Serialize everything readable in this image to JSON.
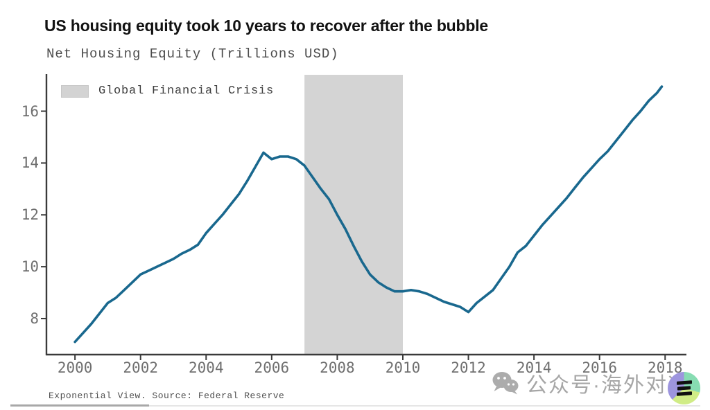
{
  "header": {
    "title": "US housing equity took 10 years to recover after the bubble",
    "subtitle": "Net Housing Equity (Trillions USD)"
  },
  "chart_data": {
    "type": "line",
    "title": "Net Housing Equity (Trillions USD)",
    "xlabel": "",
    "ylabel": "",
    "x_ticks": [
      2000,
      2002,
      2004,
      2006,
      2008,
      2010,
      2012,
      2014,
      2016,
      2018
    ],
    "y_ticks": [
      8,
      10,
      12,
      14,
      16
    ],
    "xlim": [
      1999.13,
      2018.65
    ],
    "ylim": [
      6.61,
      17.43
    ],
    "grid": false,
    "legend_position": "top-left",
    "line_color": "#19688e",
    "axis_color": "#3a3a3a",
    "tick_label_color": "#6f6f6f",
    "band": {
      "label": "Global Financial Crisis",
      "from": 2007,
      "to": 2010,
      "color": "#d4d4d4"
    },
    "series": [
      {
        "name": "Net Housing Equity (Trillions USD)",
        "points": [
          [
            2000.0,
            7.1
          ],
          [
            2000.25,
            7.45
          ],
          [
            2000.5,
            7.8
          ],
          [
            2000.75,
            8.2
          ],
          [
            2001.0,
            8.6
          ],
          [
            2001.25,
            8.8
          ],
          [
            2001.5,
            9.1
          ],
          [
            2001.75,
            9.4
          ],
          [
            2002.0,
            9.7
          ],
          [
            2002.25,
            9.85
          ],
          [
            2002.5,
            10.0
          ],
          [
            2002.75,
            10.15
          ],
          [
            2003.0,
            10.3
          ],
          [
            2003.25,
            10.5
          ],
          [
            2003.5,
            10.65
          ],
          [
            2003.75,
            10.85
          ],
          [
            2004.0,
            11.3
          ],
          [
            2004.25,
            11.65
          ],
          [
            2004.5,
            12.0
          ],
          [
            2004.75,
            12.4
          ],
          [
            2005.0,
            12.8
          ],
          [
            2005.25,
            13.3
          ],
          [
            2005.5,
            13.85
          ],
          [
            2005.75,
            14.4
          ],
          [
            2006.0,
            14.15
          ],
          [
            2006.25,
            14.25
          ],
          [
            2006.5,
            14.25
          ],
          [
            2006.75,
            14.15
          ],
          [
            2007.0,
            13.9
          ],
          [
            2007.25,
            13.45
          ],
          [
            2007.5,
            13.0
          ],
          [
            2007.75,
            12.6
          ],
          [
            2008.0,
            12.0
          ],
          [
            2008.25,
            11.45
          ],
          [
            2008.5,
            10.8
          ],
          [
            2008.75,
            10.2
          ],
          [
            2009.0,
            9.7
          ],
          [
            2009.25,
            9.4
          ],
          [
            2009.5,
            9.2
          ],
          [
            2009.75,
            9.05
          ],
          [
            2010.0,
            9.05
          ],
          [
            2010.25,
            9.1
          ],
          [
            2010.5,
            9.05
          ],
          [
            2010.75,
            8.95
          ],
          [
            2011.0,
            8.8
          ],
          [
            2011.25,
            8.65
          ],
          [
            2011.5,
            8.55
          ],
          [
            2011.75,
            8.45
          ],
          [
            2012.0,
            8.25
          ],
          [
            2012.25,
            8.6
          ],
          [
            2012.5,
            8.85
          ],
          [
            2012.75,
            9.1
          ],
          [
            2013.0,
            9.55
          ],
          [
            2013.25,
            10.0
          ],
          [
            2013.5,
            10.55
          ],
          [
            2013.75,
            10.8
          ],
          [
            2014.0,
            11.2
          ],
          [
            2014.25,
            11.6
          ],
          [
            2014.5,
            11.95
          ],
          [
            2014.75,
            12.3
          ],
          [
            2015.0,
            12.65
          ],
          [
            2015.25,
            13.05
          ],
          [
            2015.5,
            13.45
          ],
          [
            2015.75,
            13.8
          ],
          [
            2016.0,
            14.15
          ],
          [
            2016.25,
            14.45
          ],
          [
            2016.5,
            14.85
          ],
          [
            2016.75,
            15.25
          ],
          [
            2017.0,
            15.65
          ],
          [
            2017.25,
            16.0
          ],
          [
            2017.5,
            16.4
          ],
          [
            2017.75,
            16.7
          ],
          [
            2017.9,
            16.95
          ]
        ]
      }
    ]
  },
  "footer": {
    "source_note": "Exponential View. Source: Federal Reserve"
  },
  "watermark": {
    "text": "公众号·海外对冲",
    "icon": "wechat-logo",
    "text_color": "#a6a6a6",
    "badge_colors": {
      "mint": "#87dcb2",
      "lime": "#d0ec86",
      "purple": "#9d95de",
      "bars": "#101010"
    }
  }
}
